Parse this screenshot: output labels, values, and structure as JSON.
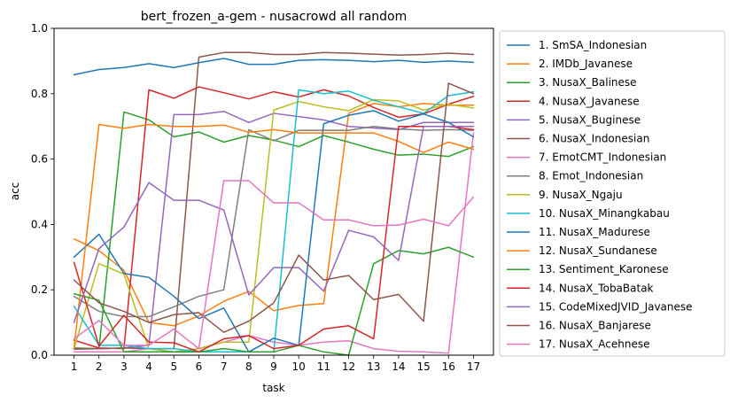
{
  "chart_data": {
    "type": "line",
    "title": "bert_frozen_a-gem - nusacrowd all random",
    "xlabel": "task",
    "ylabel": "acc",
    "x": [
      1,
      2,
      3,
      4,
      5,
      6,
      7,
      8,
      9,
      10,
      11,
      12,
      13,
      14,
      15,
      16,
      17
    ],
    "xlim": [
      0.2,
      17.8
    ],
    "ylim": [
      0.0,
      1.0
    ],
    "yticks": [
      "0.0",
      "0.2",
      "0.4",
      "0.6",
      "0.8",
      "1.0"
    ],
    "xticks": [
      "1",
      "2",
      "3",
      "4",
      "5",
      "6",
      "7",
      "8",
      "9",
      "10",
      "11",
      "12",
      "13",
      "14",
      "15",
      "16",
      "17"
    ],
    "legend_position": "outside-right",
    "grid": false,
    "series": [
      {
        "name": "1. SmSA_Indonesian",
        "color": "#1f77b4",
        "values": [
          0.858,
          0.874,
          0.88,
          0.892,
          0.88,
          0.895,
          0.908,
          0.89,
          0.89,
          0.902,
          0.904,
          0.902,
          0.898,
          0.902,
          0.896,
          0.9,
          0.896
        ]
      },
      {
        "name": "2. IMDb_Javanese",
        "color": "#ff7f0e",
        "values": [
          0.356,
          0.32,
          0.26,
          0.1,
          0.09,
          0.12,
          0.165,
          0.195,
          0.136,
          0.152,
          0.158,
          0.74,
          0.77,
          0.76,
          0.77,
          0.765,
          0.765
        ]
      },
      {
        "name": "3. NusaX_Balinese",
        "color": "#2ca02c",
        "values": [
          0.022,
          0.02,
          0.744,
          0.72,
          0.668,
          0.683,
          0.652,
          0.672,
          0.658,
          0.638,
          0.672,
          0.652,
          0.63,
          0.612,
          0.615,
          0.608,
          0.638
        ]
      },
      {
        "name": "4. NusaX_Javanese",
        "color": "#d62728",
        "values": [
          0.046,
          0.022,
          0.02,
          0.812,
          0.786,
          0.821,
          0.803,
          0.784,
          0.806,
          0.79,
          0.812,
          0.793,
          0.758,
          0.728,
          0.738,
          0.768,
          0.792
        ]
      },
      {
        "name": "5. NusaX_Buginese",
        "color": "#9467bd",
        "values": [
          0.018,
          0.02,
          0.022,
          0.03,
          0.736,
          0.736,
          0.746,
          0.712,
          0.74,
          0.73,
          0.72,
          0.7,
          0.695,
          0.69,
          0.712,
          0.712,
          0.712
        ]
      },
      {
        "name": "6. NusaX_Indonesian",
        "color": "#8c564b",
        "values": [
          0.02,
          0.02,
          0.022,
          0.02,
          0.02,
          0.912,
          0.926,
          0.926,
          0.92,
          0.92,
          0.926,
          0.924,
          0.921,
          0.918,
          0.92,
          0.924,
          0.92
        ]
      },
      {
        "name": "7. EmotCMT_Indonesian",
        "color": "#e377c2",
        "values": [
          0.01,
          0.01,
          0.01,
          0.02,
          0.01,
          0.02,
          0.04,
          0.06,
          0.04,
          0.03,
          0.04,
          0.044,
          0.02,
          0.012,
          0.01,
          0.006,
          0.68
        ]
      },
      {
        "name": "8. Emot_Indonesian",
        "color": "#7f7f7f",
        "values": [
          0.18,
          0.134,
          0.118,
          0.118,
          0.148,
          0.18,
          0.2,
          0.69,
          0.656,
          0.688,
          0.688,
          0.688,
          0.7,
          0.692,
          0.688,
          0.69,
          0.688
        ]
      },
      {
        "name": "9. NusaX_Ngaju",
        "color": "#bcbd22",
        "values": [
          0.02,
          0.28,
          0.248,
          0.02,
          0.01,
          0.02,
          0.04,
          0.04,
          0.75,
          0.776,
          0.76,
          0.748,
          0.782,
          0.778,
          0.75,
          0.768,
          0.756
        ]
      },
      {
        "name": "10. NusaX_Minangkabau",
        "color": "#17becf",
        "values": [
          0.15,
          0.03,
          0.03,
          0.02,
          0.02,
          0.01,
          0.01,
          0.01,
          0.01,
          0.812,
          0.8,
          0.808,
          0.78,
          0.76,
          0.74,
          0.794,
          0.806
        ]
      },
      {
        "name": "11. NusaX_Madurese",
        "color": "#1f77b4",
        "values": [
          0.3,
          0.37,
          0.25,
          0.238,
          0.18,
          0.112,
          0.144,
          0.01,
          0.052,
          0.03,
          0.708,
          0.734,
          0.748,
          0.716,
          0.738,
          0.712,
          0.668
        ]
      },
      {
        "name": "12. NusaX_Sundanese",
        "color": "#ff7f0e",
        "values": [
          0.02,
          0.706,
          0.694,
          0.706,
          0.7,
          0.7,
          0.704,
          0.682,
          0.69,
          0.68,
          0.68,
          0.68,
          0.68,
          0.654,
          0.62,
          0.652,
          0.63
        ]
      },
      {
        "name": "13. Sentiment_Karonese",
        "color": "#2ca02c",
        "values": [
          0.188,
          0.168,
          0.01,
          0.01,
          0.01,
          0.01,
          0.02,
          0.01,
          0.01,
          0.03,
          0.01,
          0.0,
          0.28,
          0.32,
          0.31,
          0.33,
          0.3
        ]
      },
      {
        "name": "14. NusaX_TobaBatak",
        "color": "#d62728",
        "values": [
          0.284,
          0.028,
          0.122,
          0.04,
          0.038,
          0.01,
          0.05,
          0.06,
          0.02,
          0.03,
          0.08,
          0.09,
          0.05,
          0.7,
          0.7,
          0.7,
          0.69
        ]
      },
      {
        "name": "15. CodeMixedJVID_Javanese",
        "color": "#9467bd",
        "values": [
          0.1,
          0.326,
          0.392,
          0.528,
          0.474,
          0.474,
          0.444,
          0.184,
          0.268,
          0.268,
          0.196,
          0.382,
          0.362,
          0.29,
          0.7,
          0.7,
          0.7
        ]
      },
      {
        "name": "16. NusaX_Banjarese",
        "color": "#8c564b",
        "values": [
          0.23,
          0.16,
          0.134,
          0.1,
          0.124,
          0.13,
          0.07,
          0.104,
          0.16,
          0.306,
          0.23,
          0.244,
          0.17,
          0.186,
          0.104,
          0.832,
          0.8
        ]
      },
      {
        "name": "17. NusaX_Acehnese",
        "color": "#e377c2",
        "values": [
          0.05,
          0.106,
          0.03,
          0.03,
          0.08,
          0.02,
          0.534,
          0.534,
          0.466,
          0.466,
          0.414,
          0.414,
          0.396,
          0.398,
          0.416,
          0.396,
          0.484
        ]
      }
    ]
  }
}
